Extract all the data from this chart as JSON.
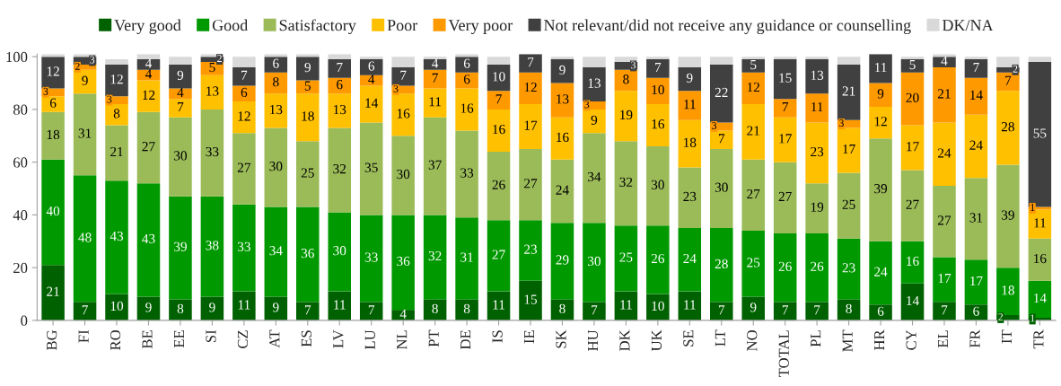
{
  "chart_data": {
    "type": "bar",
    "stacked": true,
    "categories": [
      "BG",
      "FI",
      "RO",
      "BE",
      "EE",
      "SI",
      "CZ",
      "AT",
      "ES",
      "LV",
      "LU",
      "NL",
      "PT",
      "DE",
      "IS",
      "IE",
      "SK",
      "HU",
      "DK",
      "UK",
      "SE",
      "LT",
      "NO",
      "TOTAL",
      "PL",
      "MT",
      "HR",
      "CY",
      "EL",
      "FR",
      "IT",
      "TR"
    ],
    "series": [
      {
        "name": "Very good",
        "color": "#006100",
        "values": [
          21,
          7,
          10,
          9,
          8,
          9,
          11,
          9,
          7,
          11,
          7,
          4,
          8,
          8,
          11,
          15,
          8,
          7,
          11,
          10,
          11,
          7,
          9,
          7,
          7,
          8,
          6,
          14,
          7,
          6,
          2,
          1
        ],
        "value_labels": [
          "21",
          "7",
          "10",
          "9",
          "8",
          "9",
          "11",
          "9",
          "7",
          "11",
          "7",
          "4",
          "8",
          "8",
          "11",
          "15",
          "8",
          "7",
          "11",
          "10",
          "11",
          "7",
          "9",
          "7",
          "7",
          "8",
          "6",
          "14",
          "7",
          "6",
          "2",
          "1"
        ]
      },
      {
        "name": "Good",
        "color": "#009900",
        "values": [
          40,
          48,
          43,
          43,
          39,
          38,
          33,
          34,
          36,
          30,
          33,
          36,
          32,
          31,
          27,
          23,
          29,
          30,
          25,
          26,
          24,
          28,
          25,
          26,
          26,
          23,
          24,
          16,
          17,
          17,
          18,
          14
        ],
        "value_labels": [
          "40",
          "48",
          "43",
          "43",
          "39",
          "38",
          "33",
          "34",
          "36",
          "30",
          "33",
          "36",
          "32",
          "31",
          "27",
          "23",
          "29",
          "30",
          "25",
          "26",
          "24",
          "28",
          "25",
          "26",
          "26",
          "23",
          "24",
          "16",
          "17",
          "17",
          "18",
          "14"
        ]
      },
      {
        "name": "Satisfactory",
        "color": "#9bbb59",
        "values": [
          18,
          31,
          21,
          27,
          30,
          33,
          27,
          30,
          25,
          32,
          35,
          30,
          37,
          33,
          26,
          27,
          24,
          34,
          32,
          30,
          23,
          30,
          27,
          27,
          19,
          25,
          39,
          27,
          27,
          31,
          39,
          16
        ],
        "value_labels": [
          "18",
          "31",
          "21",
          "27",
          "30",
          "33",
          "27",
          "30",
          "25",
          "32",
          "35",
          "30",
          "37",
          "33",
          "26",
          "27",
          "24",
          "34",
          "32",
          "30",
          "23",
          "30",
          "27",
          "27",
          "19",
          "25",
          "39",
          "27",
          "27",
          "31",
          "39",
          "16"
        ]
      },
      {
        "name": "Poor",
        "color": "#ffc000",
        "values": [
          6,
          9,
          8,
          12,
          7,
          13,
          12,
          13,
          18,
          13,
          14,
          16,
          11,
          16,
          16,
          17,
          16,
          9,
          19,
          16,
          18,
          7,
          21,
          17,
          23,
          17,
          12,
          17,
          24,
          24,
          28,
          11
        ],
        "value_labels": [
          "6",
          "9",
          "8",
          "12",
          "7",
          "13",
          "12",
          "13",
          "18",
          "13",
          "14",
          "16",
          "11",
          "16",
          "16",
          "17",
          "16",
          "9",
          "19",
          "16",
          "18",
          "7",
          "21",
          "17",
          "23",
          "17",
          "12",
          "17",
          "24",
          "24",
          "28",
          "11"
        ]
      },
      {
        "name": "Very poor",
        "color": "#ff9900",
        "values": [
          3,
          2,
          3,
          4,
          4,
          5,
          6,
          8,
          5,
          6,
          4,
          3,
          7,
          6,
          7,
          12,
          13,
          3,
          8,
          10,
          11,
          3,
          12,
          7,
          11,
          3,
          9,
          20,
          21,
          14,
          7,
          1
        ],
        "value_labels": [
          "3",
          "2",
          "3",
          "4",
          "4",
          "5",
          "6",
          "8",
          "5",
          "6",
          "4",
          "3",
          "7",
          "6",
          "7",
          "12",
          "13",
          "3",
          "8",
          "10",
          "11",
          "3",
          "12",
          "7",
          "11",
          "3",
          "9",
          "20",
          "21",
          "14",
          "7",
          "1"
        ]
      },
      {
        "name": "Not relevant/did not receive any guidance or counselling",
        "color": "#404040",
        "values": [
          12,
          3,
          12,
          4,
          9,
          2,
          7,
          6,
          9,
          7,
          6,
          7,
          4,
          6,
          10,
          7,
          9,
          13,
          3,
          7,
          9,
          22,
          5,
          15,
          13,
          21,
          11,
          5,
          4,
          7,
          2,
          55
        ],
        "value_labels": [
          "12",
          "3",
          "12",
          "4",
          "9",
          "2",
          "7",
          "6",
          "9",
          "7",
          "6",
          "7",
          "4",
          "6",
          "10",
          "7",
          "9",
          "13",
          "3",
          "7",
          "9",
          "22",
          "5",
          "15",
          "13",
          "21",
          "11",
          "5",
          "4",
          "7",
          "2",
          "55"
        ]
      },
      {
        "name": "DK/NA",
        "color": "#d9d9d9",
        "values": [
          1,
          1,
          2,
          2,
          3,
          1,
          4,
          1,
          1,
          2,
          1,
          4,
          1,
          1,
          3,
          null,
          1,
          4,
          2,
          1,
          4,
          3,
          1,
          1,
          1,
          3,
          null,
          1,
          1,
          1,
          4,
          2
        ]
      }
    ],
    "ylim": [
      0,
      101
    ],
    "yticks": [
      0,
      20,
      40,
      60,
      80,
      100
    ],
    "grid": false,
    "legend": "top"
  }
}
